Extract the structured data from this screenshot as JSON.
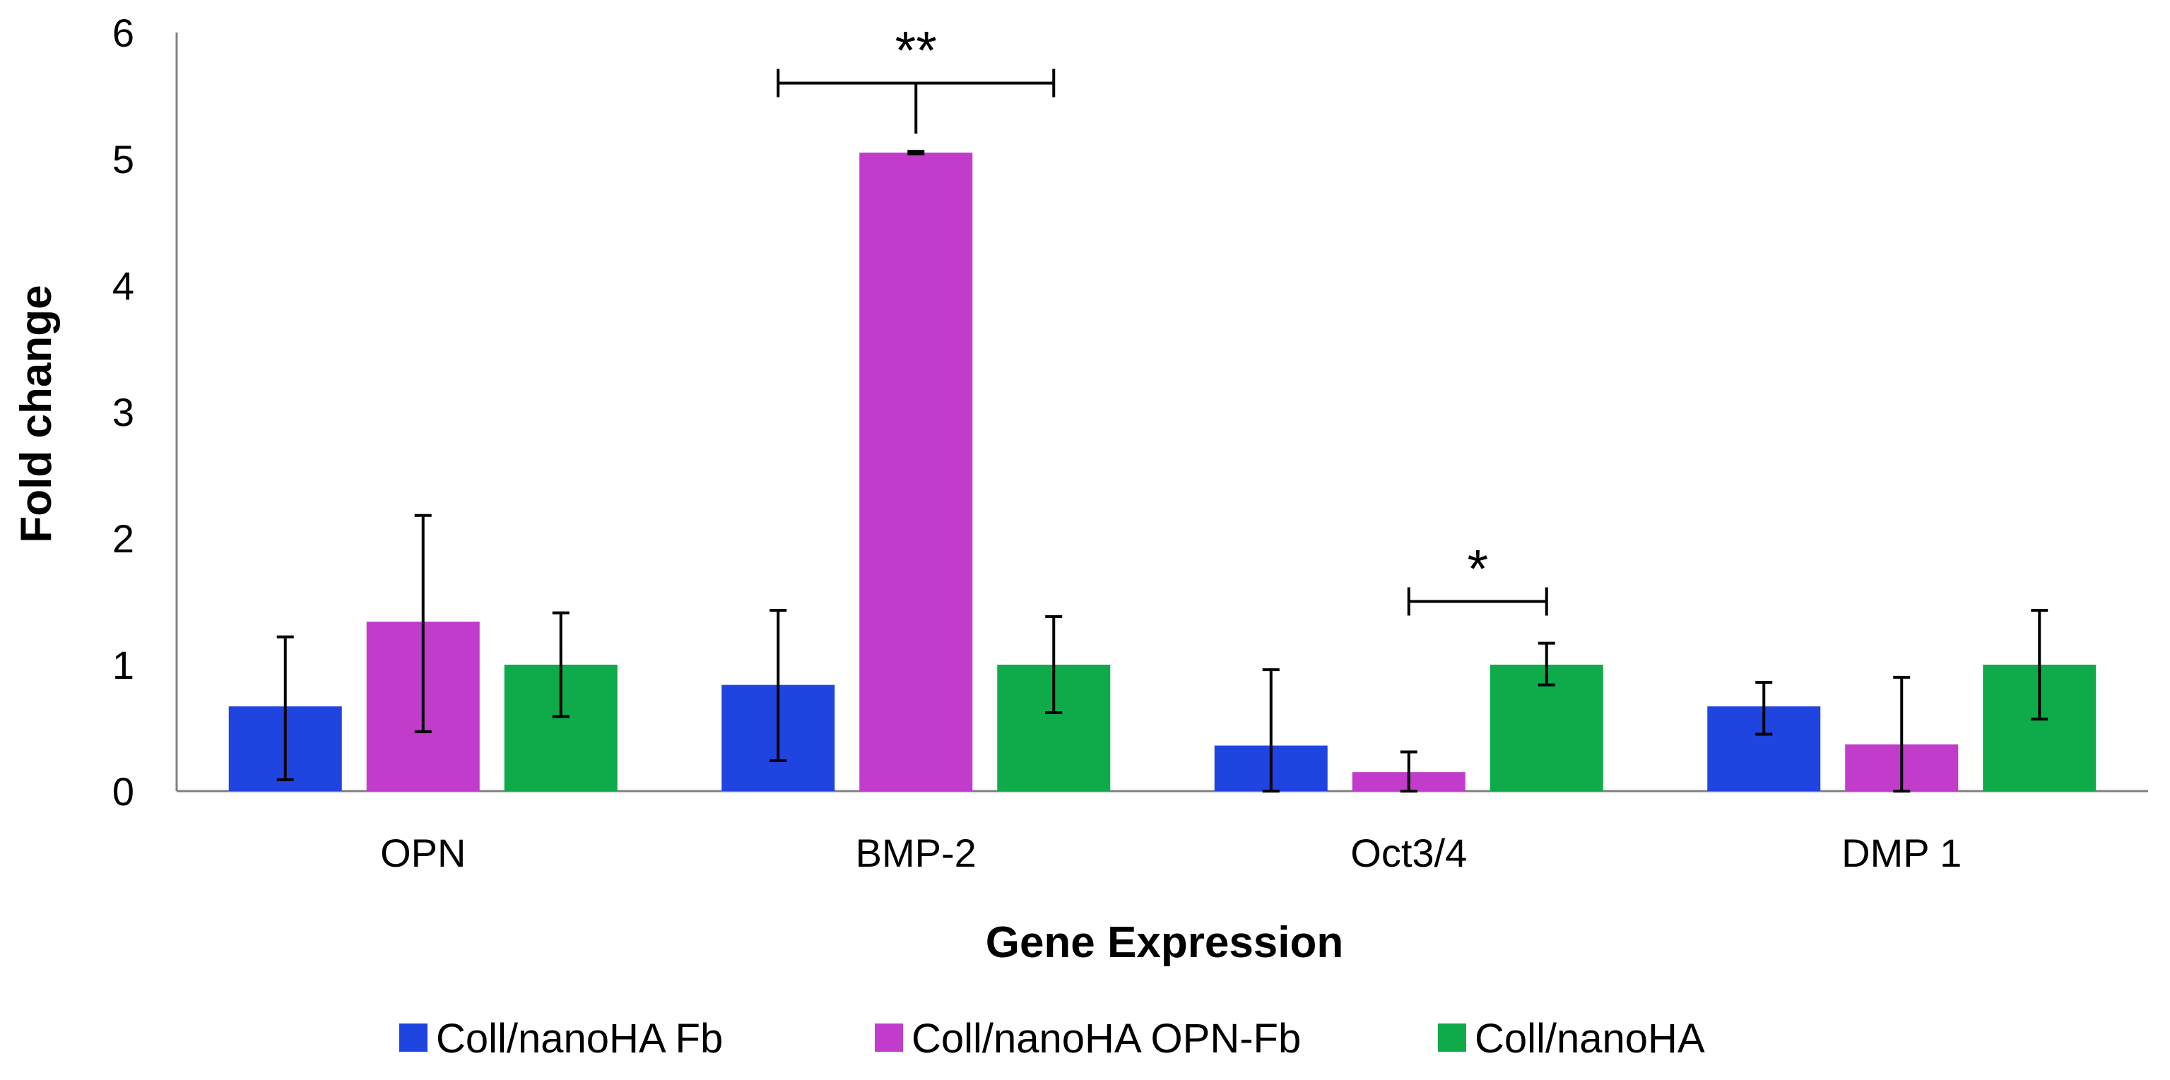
{
  "chart_data": {
    "type": "bar",
    "categories": [
      "OPN",
      "BMP-2",
      "Oct3/4",
      "DMP 1"
    ],
    "series": [
      {
        "name": "Coll/nanoHA Fb",
        "color": "#2044e0",
        "values": [
          0.67,
          0.84,
          0.36,
          0.67
        ],
        "err_low": [
          0.09,
          0.24,
          0.0,
          0.45
        ],
        "err_high": [
          1.22,
          1.43,
          0.96,
          0.86
        ]
      },
      {
        "name": "Coll/nanoHA OPN-Fb",
        "color": "#c23ccc",
        "values": [
          1.34,
          5.05,
          0.15,
          0.37
        ],
        "err_low": [
          0.47,
          5.04,
          0.0,
          0.0
        ],
        "err_high": [
          2.18,
          5.06,
          0.31,
          0.9
        ]
      },
      {
        "name": "Coll/nanoHA",
        "color": "#0fab4b",
        "values": [
          1.0,
          1.0,
          1.0,
          1.0
        ],
        "err_low": [
          0.59,
          0.62,
          0.84,
          0.57
        ],
        "err_high": [
          1.41,
          1.38,
          1.17,
          1.43
        ]
      }
    ],
    "xlabel": "Gene Expression",
    "ylabel": "Fold change",
    "ylim": [
      0,
      6
    ],
    "yticks": [
      "0",
      "1",
      "2",
      "3",
      "4",
      "5",
      "6"
    ],
    "grid": false,
    "legend_position": "bottom",
    "annotations": [
      {
        "text": "**",
        "category": "BMP-2",
        "from_series": 0,
        "to_series": 2,
        "y": 5.6,
        "stem_to": 5.2
      },
      {
        "text": "*",
        "category": "Oct3/4",
        "from_series": 1,
        "to_series": 2,
        "y": 1.5,
        "stem_to": null
      }
    ]
  }
}
